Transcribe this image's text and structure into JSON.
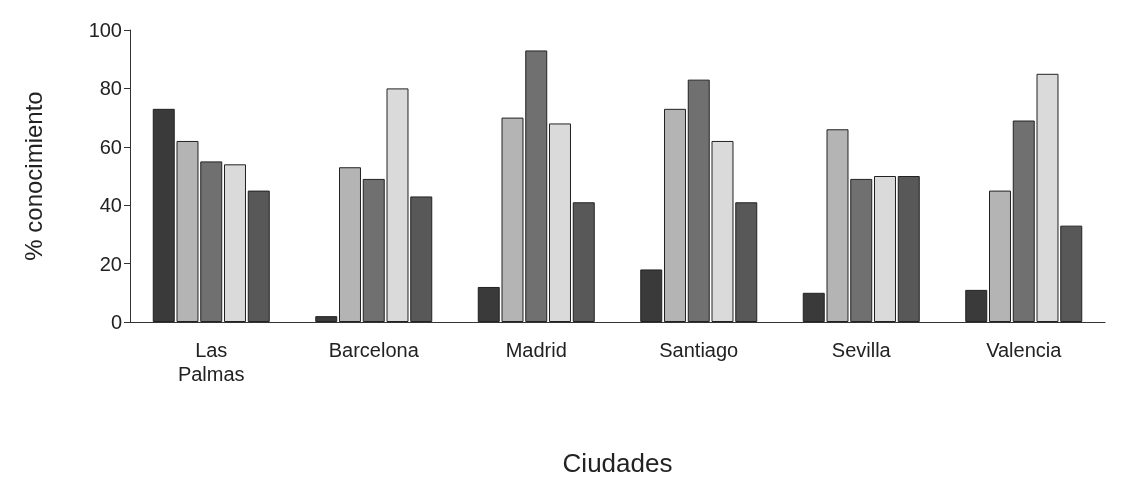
{
  "chart_data": {
    "type": "bar",
    "xlabel": "Ciudades",
    "ylabel": "% conocimiento",
    "categories": [
      "Las Palmas",
      "Barcelona",
      "Madrid",
      "Santiago",
      "Sevilla",
      "Valencia"
    ],
    "series": [
      {
        "color": "#3a3a3a",
        "values": [
          73,
          2,
          12,
          18,
          10,
          11
        ]
      },
      {
        "color": "#b4b4b4",
        "values": [
          62,
          53,
          70,
          73,
          66,
          45
        ]
      },
      {
        "color": "#707070",
        "values": [
          55,
          49,
          93,
          83,
          49,
          69
        ]
      },
      {
        "color": "#dadada",
        "values": [
          54,
          80,
          68,
          62,
          50,
          85
        ]
      },
      {
        "color": "#585858",
        "values": [
          45,
          43,
          41,
          41,
          50,
          33
        ]
      }
    ],
    "ylim": [
      0,
      100
    ],
    "yticks": [
      0,
      20,
      40,
      60,
      80,
      100
    ]
  }
}
